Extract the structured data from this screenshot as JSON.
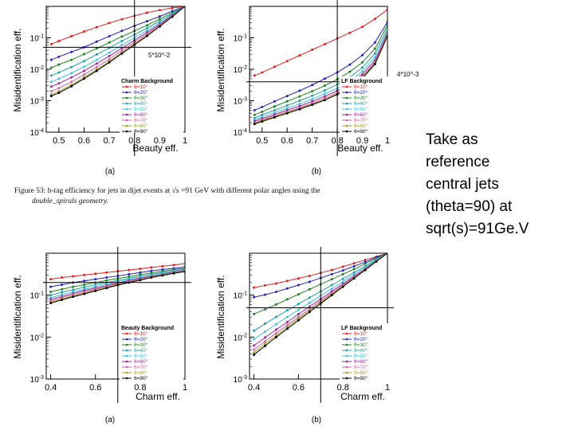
{
  "caption": {
    "line1": "Figure 53: b-tag efficiency for jets in dijet events at √s =91 GeV with different polar angles using the",
    "line2": "double_spirals geometry."
  },
  "note": {
    "lines": [
      "Take as",
      "reference",
      "central jets",
      "(theta=90)  at",
      "sqrt(s)=91Ge.V"
    ]
  },
  "chart_data": [
    {
      "id": "top-left",
      "type": "line",
      "panel_label": "(a)",
      "xlabel": "Beauty eff.",
      "ylabel": "Misidentification eff.",
      "xlim": [
        0.45,
        1.0
      ],
      "ylim_log10": [
        -4,
        0
      ],
      "xticks": [
        0.5,
        0.6,
        0.7,
        0.8,
        0.9,
        1
      ],
      "yticks": [
        "10^{-4}",
        "10^{-3}",
        "10^{-2}",
        "10^{-1}"
      ],
      "legend_title": "Charm Background",
      "legend_entries": [
        "θ=10°",
        "θ=20°",
        "θ=30°",
        "θ=40°",
        "θ=50°",
        "θ=60°",
        "θ=70°",
        "θ=80°",
        "θ=90°"
      ],
      "annotation": "5*10^-2",
      "ref_x": 0.8,
      "ref_y": 0.05,
      "curve_x": [
        0.47,
        0.5,
        0.55,
        0.6,
        0.65,
        0.7,
        0.75,
        0.8,
        0.85,
        0.9,
        0.95,
        1.0
      ],
      "curves_log10": [
        [
          -1.2,
          -1.1,
          -0.95,
          -0.8,
          -0.66,
          -0.53,
          -0.41,
          -0.3,
          -0.2,
          -0.12,
          -0.05,
          0
        ],
        [
          -1.7,
          -1.6,
          -1.45,
          -1.3,
          -1.12,
          -0.95,
          -0.78,
          -0.62,
          -0.47,
          -0.32,
          -0.15,
          0
        ],
        [
          -1.95,
          -1.85,
          -1.7,
          -1.52,
          -1.34,
          -1.15,
          -0.96,
          -0.78,
          -0.6,
          -0.4,
          -0.2,
          0
        ],
        [
          -2.2,
          -2.1,
          -1.93,
          -1.74,
          -1.53,
          -1.32,
          -1.1,
          -0.9,
          -0.69,
          -0.47,
          -0.24,
          0
        ],
        [
          -2.4,
          -2.3,
          -2.12,
          -1.92,
          -1.7,
          -1.47,
          -1.23,
          -1.0,
          -0.77,
          -0.53,
          -0.27,
          0
        ],
        [
          -2.55,
          -2.45,
          -2.26,
          -2.05,
          -1.82,
          -1.58,
          -1.33,
          -1.08,
          -0.83,
          -0.57,
          -0.29,
          0
        ],
        [
          -2.7,
          -2.6,
          -2.4,
          -2.17,
          -1.93,
          -1.68,
          -1.41,
          -1.15,
          -0.88,
          -0.6,
          -0.31,
          0
        ],
        [
          -2.8,
          -2.7,
          -2.5,
          -2.26,
          -2.01,
          -1.75,
          -1.47,
          -1.2,
          -0.92,
          -0.63,
          -0.32,
          0
        ],
        [
          -2.85,
          -2.75,
          -2.54,
          -2.3,
          -2.05,
          -1.78,
          -1.5,
          -1.22,
          -0.94,
          -0.64,
          -0.33,
          0
        ]
      ]
    },
    {
      "id": "top-right",
      "type": "line",
      "panel_label": "(b)",
      "xlabel": "Beauty eff.",
      "ylabel": "Misidentification eff.",
      "xlim": [
        0.45,
        1.0
      ],
      "ylim_log10": [
        -4,
        0
      ],
      "xticks": [
        0.5,
        0.6,
        0.7,
        0.8,
        0.9,
        1
      ],
      "yticks": [
        "10^{-4}",
        "10^{-3}",
        "10^{-2}",
        "10^{-1}"
      ],
      "legend_title": "LF Background",
      "legend_entries": [
        "θ=10°",
        "θ=20°",
        "θ=30°",
        "θ=40°",
        "θ=50°",
        "θ=60°",
        "θ=70°",
        "θ=80°",
        "θ=90°"
      ],
      "annotation": "4*10^-3",
      "ref_x": 0.8,
      "ref_y": 0.004,
      "curve_x": [
        0.47,
        0.5,
        0.55,
        0.6,
        0.65,
        0.7,
        0.75,
        0.8,
        0.85,
        0.9,
        0.95,
        1.0
      ],
      "curves_log10": [
        [
          -2.2,
          -2.1,
          -1.92,
          -1.74,
          -1.56,
          -1.38,
          -1.2,
          -1.02,
          -0.84,
          -0.65,
          -0.4,
          -0.1
        ],
        [
          -3.3,
          -3.2,
          -3.02,
          -2.85,
          -2.68,
          -2.5,
          -2.3,
          -2.1,
          -1.85,
          -1.55,
          -1.15,
          -0.5
        ],
        [
          -3.45,
          -3.35,
          -3.18,
          -3.02,
          -2.86,
          -2.7,
          -2.52,
          -2.32,
          -2.08,
          -1.78,
          -1.35,
          -0.6
        ],
        [
          -3.55,
          -3.45,
          -3.3,
          -3.15,
          -3.0,
          -2.84,
          -2.67,
          -2.48,
          -2.25,
          -1.95,
          -1.5,
          -0.7
        ],
        [
          -3.6,
          -3.52,
          -3.38,
          -3.24,
          -3.1,
          -2.95,
          -2.78,
          -2.6,
          -2.37,
          -2.07,
          -1.62,
          -0.78
        ],
        [
          -3.65,
          -3.57,
          -3.44,
          -3.3,
          -3.17,
          -3.02,
          -2.86,
          -2.68,
          -2.46,
          -2.16,
          -1.72,
          -0.85
        ],
        [
          -3.7,
          -3.61,
          -3.48,
          -3.35,
          -3.22,
          -3.08,
          -2.92,
          -2.74,
          -2.52,
          -2.23,
          -1.78,
          -0.9
        ],
        [
          -3.72,
          -3.64,
          -3.51,
          -3.38,
          -3.25,
          -3.11,
          -2.96,
          -2.78,
          -2.56,
          -2.27,
          -1.82,
          -0.93
        ],
        [
          -3.74,
          -3.66,
          -3.53,
          -3.4,
          -3.27,
          -3.13,
          -2.98,
          -2.8,
          -2.58,
          -2.29,
          -1.84,
          -0.95
        ]
      ]
    },
    {
      "id": "bottom-left",
      "type": "line",
      "panel_label": "(a)",
      "xlabel": "Charm eff.",
      "ylabel": "Misidentification eff.",
      "xlim": [
        0.38,
        1.0
      ],
      "ylim_log10": [
        -3,
        0
      ],
      "xticks": [
        0.4,
        0.6,
        0.8,
        1
      ],
      "yticks": [
        "10^{-3}",
        "10^{-2}",
        "10^{-1}"
      ],
      "legend_title": "Beauty Background",
      "legend_entries": [
        "θ=10°",
        "θ=20°",
        "θ=30°",
        "θ=40°",
        "θ=50°",
        "θ=60°",
        "θ=70°",
        "θ=80°",
        "θ=90°"
      ],
      "annotation": "",
      "ref_x": 0.7,
      "ref_y": 0.2,
      "curve_x": [
        0.4,
        0.45,
        0.5,
        0.55,
        0.6,
        0.65,
        0.7,
        0.75,
        0.8,
        0.85,
        0.9,
        0.95,
        1.0
      ],
      "curves_log10": [
        [
          -0.62,
          -0.58,
          -0.55,
          -0.52,
          -0.49,
          -0.46,
          -0.43,
          -0.4,
          -0.37,
          -0.34,
          -0.31,
          -0.28,
          -0.25
        ],
        [
          -0.8,
          -0.75,
          -0.7,
          -0.66,
          -0.62,
          -0.58,
          -0.54,
          -0.5,
          -0.46,
          -0.42,
          -0.39,
          -0.36,
          -0.33
        ],
        [
          -0.92,
          -0.86,
          -0.8,
          -0.75,
          -0.7,
          -0.65,
          -0.6,
          -0.56,
          -0.51,
          -0.47,
          -0.43,
          -0.39,
          -0.36
        ],
        [
          -1.0,
          -0.93,
          -0.87,
          -0.81,
          -0.75,
          -0.7,
          -0.65,
          -0.6,
          -0.55,
          -0.5,
          -0.46,
          -0.42,
          -0.38
        ],
        [
          -1.06,
          -0.99,
          -0.92,
          -0.86,
          -0.8,
          -0.74,
          -0.68,
          -0.63,
          -0.58,
          -0.53,
          -0.48,
          -0.44,
          -0.4
        ],
        [
          -1.1,
          -1.03,
          -0.96,
          -0.89,
          -0.83,
          -0.77,
          -0.71,
          -0.65,
          -0.6,
          -0.55,
          -0.5,
          -0.45,
          -0.41
        ],
        [
          -1.14,
          -1.06,
          -0.99,
          -0.92,
          -0.86,
          -0.79,
          -0.73,
          -0.67,
          -0.62,
          -0.56,
          -0.51,
          -0.46,
          -0.42
        ],
        [
          -1.17,
          -1.09,
          -1.02,
          -0.95,
          -0.88,
          -0.81,
          -0.75,
          -0.69,
          -0.63,
          -0.57,
          -0.52,
          -0.47,
          -0.43
        ],
        [
          -1.19,
          -1.11,
          -1.04,
          -0.97,
          -0.9,
          -0.83,
          -0.76,
          -0.7,
          -0.64,
          -0.58,
          -0.53,
          -0.48,
          -0.44
        ]
      ]
    },
    {
      "id": "bottom-right",
      "type": "line",
      "panel_label": "(b)",
      "xlabel": "Charm eff.",
      "ylabel": "Misidentification eff.",
      "xlim": [
        0.38,
        1.0
      ],
      "ylim_log10": [
        -3,
        0
      ],
      "xticks": [
        0.4,
        0.6,
        0.8,
        1
      ],
      "yticks": [
        "10^{-3}",
        "10^{-2}",
        "10^{-1}"
      ],
      "legend_title": "LF Background",
      "legend_entries": [
        "θ=10°",
        "θ=20°",
        "θ=30°",
        "θ=40°",
        "θ=50°",
        "θ=60°",
        "θ=70°",
        "θ=80°",
        "θ=90°"
      ],
      "annotation": "",
      "ref_x": 0.7,
      "ref_y": 0.05,
      "curve_x": [
        0.4,
        0.45,
        0.5,
        0.55,
        0.6,
        0.65,
        0.7,
        0.75,
        0.8,
        0.85,
        0.9,
        0.95,
        1.0
      ],
      "curves_log10": [
        [
          -0.82,
          -0.77,
          -0.72,
          -0.66,
          -0.6,
          -0.54,
          -0.47,
          -0.4,
          -0.32,
          -0.24,
          -0.16,
          -0.08,
          0
        ],
        [
          -1.05,
          -0.99,
          -0.92,
          -0.84,
          -0.76,
          -0.68,
          -0.59,
          -0.5,
          -0.41,
          -0.31,
          -0.21,
          -0.1,
          0
        ],
        [
          -1.45,
          -1.34,
          -1.22,
          -1.1,
          -0.98,
          -0.86,
          -0.74,
          -0.62,
          -0.5,
          -0.38,
          -0.25,
          -0.12,
          0
        ],
        [
          -1.85,
          -1.68,
          -1.52,
          -1.36,
          -1.21,
          -1.06,
          -0.91,
          -0.76,
          -0.61,
          -0.46,
          -0.31,
          -0.15,
          0
        ],
        [
          -2.05,
          -1.87,
          -1.69,
          -1.52,
          -1.35,
          -1.18,
          -1.01,
          -0.85,
          -0.68,
          -0.51,
          -0.34,
          -0.17,
          0
        ],
        [
          -2.2,
          -2.01,
          -1.82,
          -1.64,
          -1.45,
          -1.27,
          -1.09,
          -0.91,
          -0.73,
          -0.55,
          -0.37,
          -0.18,
          0
        ],
        [
          -2.3,
          -2.1,
          -1.9,
          -1.71,
          -1.52,
          -1.33,
          -1.14,
          -0.95,
          -0.76,
          -0.57,
          -0.38,
          -0.19,
          0
        ],
        [
          -2.37,
          -2.16,
          -1.96,
          -1.76,
          -1.56,
          -1.37,
          -1.17,
          -0.98,
          -0.78,
          -0.59,
          -0.39,
          -0.19,
          0
        ],
        [
          -2.42,
          -2.21,
          -2.0,
          -1.8,
          -1.6,
          -1.4,
          -1.2,
          -1.0,
          -0.8,
          -0.6,
          -0.4,
          -0.2,
          0
        ]
      ]
    }
  ],
  "series_colors": [
    "#e02020",
    "#2020c0",
    "#208020",
    "#20a0a0",
    "#40c0e0",
    "#a020a0",
    "#d060a0",
    "#a0a020",
    "#000000"
  ]
}
